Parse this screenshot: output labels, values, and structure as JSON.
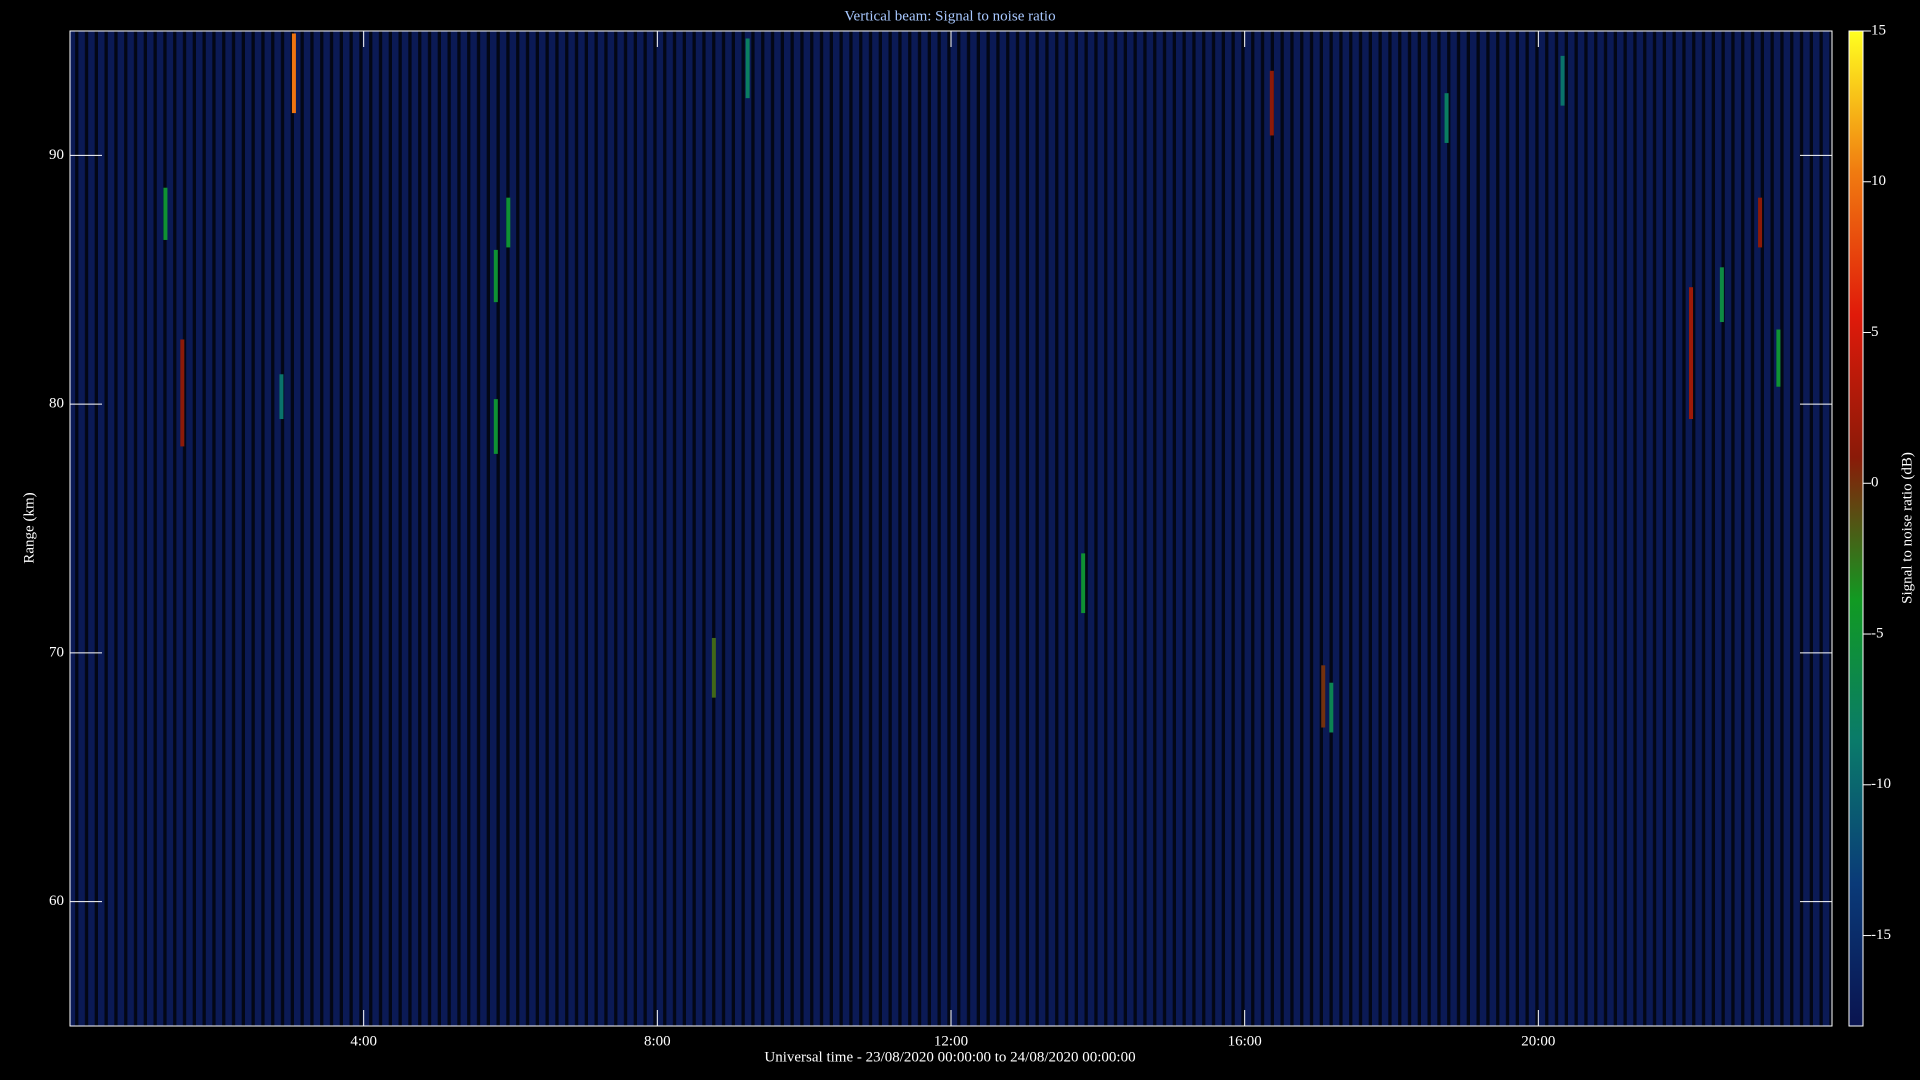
{
  "chart_data": {
    "type": "heatmap",
    "title": "Vertical beam: Signal to noise ratio",
    "x_label": "Universal time - 23/08/2020 00:00:00 to 24/08/2020 00:00:00",
    "y_label": "Range (km)",
    "colorbar_label": "Signal to noise ratio (dB)",
    "xlim": [
      0,
      24
    ],
    "xticks": [
      {
        "value": 4,
        "label": "4:00"
      },
      {
        "value": 8,
        "label": "8:00"
      },
      {
        "value": 12,
        "label": "12:00"
      },
      {
        "value": 16,
        "label": "16:00"
      },
      {
        "value": 20,
        "label": "20:00"
      }
    ],
    "ylim": [
      55,
      95
    ],
    "yticks": [
      60,
      70,
      80,
      90
    ],
    "clim": [
      -18,
      15
    ],
    "cticks": [
      -15,
      -10,
      -5,
      0,
      5,
      10,
      15
    ],
    "colormap": [
      "#0a1450",
      "#0a3a78",
      "#0a7a6a",
      "#119a22",
      "#8a1a08",
      "#e01a0a",
      "#f07a10",
      "#ffff20"
    ],
    "background_color": "#0b1a55",
    "x": [
      1.3,
      1.53,
      2.88,
      3.05,
      5.8,
      5.8,
      5.97,
      8.77,
      9.23,
      13.8,
      16.37,
      17.07,
      17.18,
      18.75,
      20.33,
      22.08,
      22.5,
      23.02,
      23.27
    ],
    "range_start": [
      86.6,
      78.3,
      79.4,
      91.7,
      84.1,
      78.0,
      86.3,
      68.2,
      92.3,
      71.6,
      90.8,
      67.0,
      66.8,
      90.5,
      92.0,
      79.4,
      83.3,
      86.3,
      80.7
    ],
    "range_end": [
      88.7,
      82.6,
      81.2,
      94.9,
      86.2,
      80.2,
      88.3,
      70.6,
      94.7,
      74.0,
      93.4,
      69.5,
      68.8,
      92.5,
      94.0,
      84.7,
      85.5,
      88.3,
      83.0
    ],
    "values": [
      -5,
      1,
      -9,
      10,
      -5,
      -5,
      -5,
      -2,
      -8,
      -5,
      1,
      0,
      -7,
      -8,
      -9,
      2,
      -6,
      1,
      -5
    ]
  }
}
